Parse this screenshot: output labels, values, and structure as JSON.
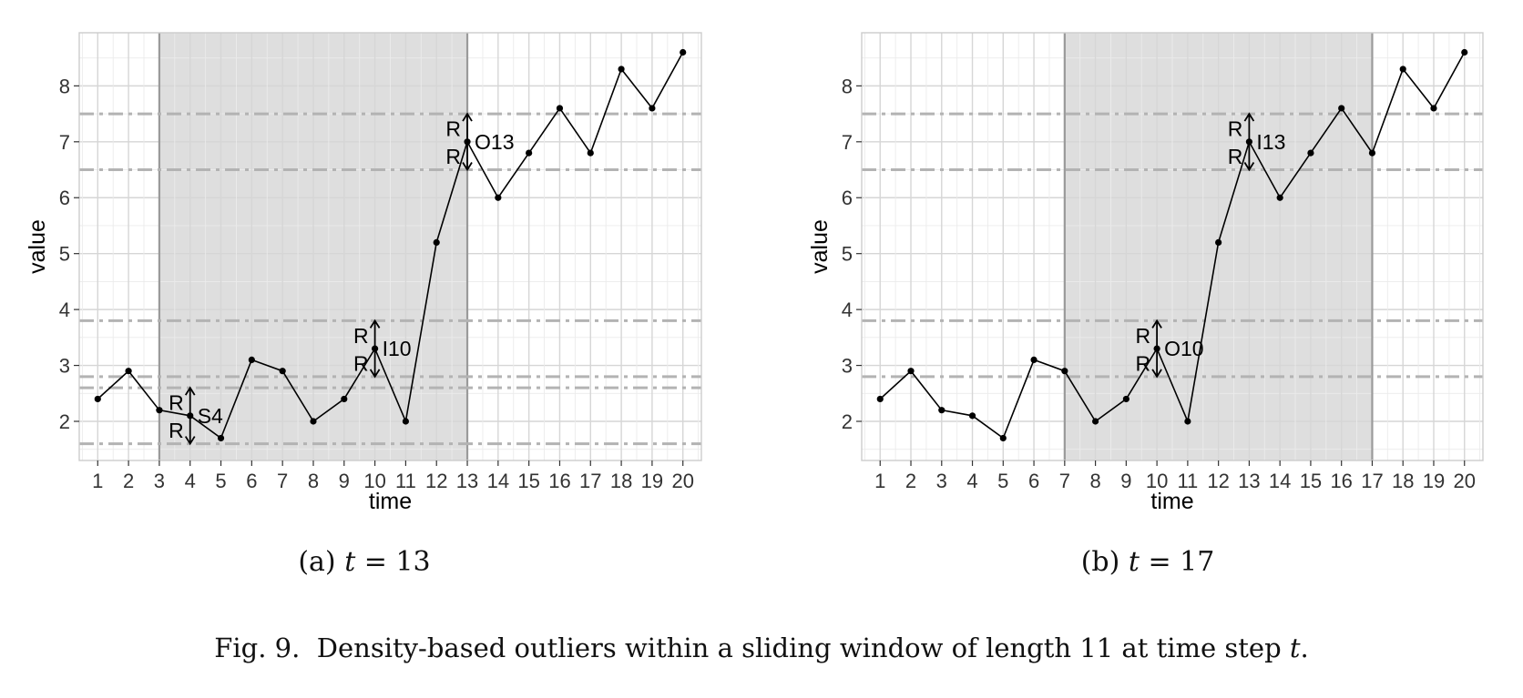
{
  "caption": {
    "figure": "Fig. 9.  Density-based outliers within a sliding window of length 11 at time step ",
    "figure_var": "t",
    "figure_end": "."
  },
  "chart_data": [
    {
      "type": "line",
      "subcaption": {
        "prefix": "(a) ",
        "var": "t",
        "rest": " = 13"
      },
      "xlabel": "time",
      "ylabel": "value",
      "x": [
        1,
        2,
        3,
        4,
        5,
        6,
        7,
        8,
        9,
        10,
        11,
        12,
        13,
        14,
        15,
        16,
        17,
        18,
        19,
        20
      ],
      "values": [
        2.4,
        2.9,
        2.2,
        2.1,
        1.7,
        3.1,
        2.9,
        2.0,
        2.4,
        3.3,
        2.0,
        5.2,
        7.0,
        6.0,
        6.8,
        7.6,
        6.8,
        8.3,
        7.6,
        8.6
      ],
      "xlim": [
        0.4,
        20.6
      ],
      "ylim": [
        1.3,
        8.95
      ],
      "yticks": [
        2,
        3,
        4,
        5,
        6,
        7,
        8
      ],
      "window": [
        3,
        13
      ],
      "thresholds": [
        1.6,
        2.6,
        2.8,
        3.8,
        6.5,
        7.5
      ],
      "annotations": [
        {
          "x": 4,
          "y": 2.1,
          "r": 0.5,
          "label": "S4",
          "r_label": "R"
        },
        {
          "x": 10,
          "y": 3.3,
          "r": 0.5,
          "label": "I10",
          "r_label": "R"
        },
        {
          "x": 13,
          "y": 7.0,
          "r": 0.5,
          "label": "O13",
          "r_label": "R"
        }
      ],
      "grid": true,
      "line_color": "#000000",
      "window_color": "#dedede",
      "threshold_color": "#b3b3b3"
    },
    {
      "type": "line",
      "subcaption": {
        "prefix": "(b) ",
        "var": "t",
        "rest": " = 17"
      },
      "xlabel": "time",
      "ylabel": "value",
      "x": [
        1,
        2,
        3,
        4,
        5,
        6,
        7,
        8,
        9,
        10,
        11,
        12,
        13,
        14,
        15,
        16,
        17,
        18,
        19,
        20
      ],
      "values": [
        2.4,
        2.9,
        2.2,
        2.1,
        1.7,
        3.1,
        2.9,
        2.0,
        2.4,
        3.3,
        2.0,
        5.2,
        7.0,
        6.0,
        6.8,
        7.6,
        6.8,
        8.3,
        7.6,
        8.6
      ],
      "xlim": [
        0.4,
        20.6
      ],
      "ylim": [
        1.3,
        8.95
      ],
      "yticks": [
        2,
        3,
        4,
        5,
        6,
        7,
        8
      ],
      "window": [
        7,
        17
      ],
      "thresholds": [
        2.8,
        3.8,
        6.5,
        7.5
      ],
      "annotations": [
        {
          "x": 10,
          "y": 3.3,
          "r": 0.5,
          "label": "O10",
          "r_label": "R"
        },
        {
          "x": 13,
          "y": 7.0,
          "r": 0.5,
          "label": "I13",
          "r_label": "R"
        }
      ],
      "grid": true,
      "line_color": "#000000",
      "window_color": "#dedede",
      "threshold_color": "#b3b3b3"
    }
  ]
}
